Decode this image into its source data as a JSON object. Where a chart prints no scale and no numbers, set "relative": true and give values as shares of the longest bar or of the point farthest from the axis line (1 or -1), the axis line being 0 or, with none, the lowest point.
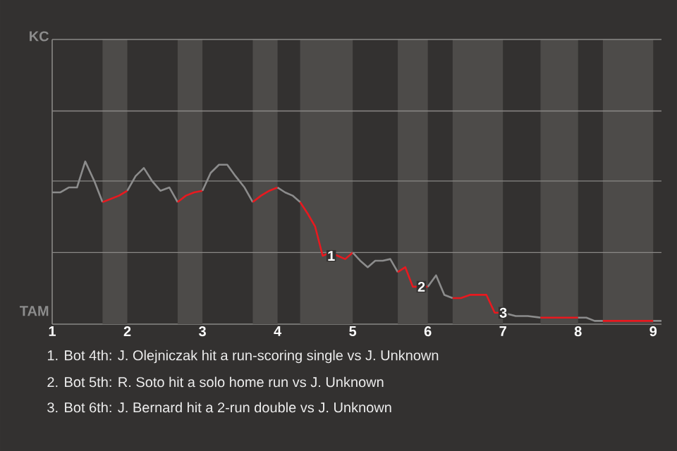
{
  "chart_data": {
    "type": "line",
    "relative": true,
    "series": [
      {
        "color": "#8c8c8c",
        "x": [
          1,
          1.11,
          1.22,
          1.33,
          1.44,
          1.56,
          1.67
        ],
        "values": [
          0.81,
          0.81,
          0.84,
          0.84,
          1,
          0.88,
          0.75
        ]
      },
      {
        "color": "#e8191f",
        "x": [
          1.67,
          1.78,
          1.89,
          2
        ],
        "values": [
          0.75,
          0.77,
          0.79,
          0.82
        ]
      },
      {
        "color": "#8c8c8c",
        "x": [
          2,
          2.11,
          2.22,
          2.33,
          2.44,
          2.56,
          2.67
        ],
        "values": [
          0.82,
          0.91,
          0.96,
          0.88,
          0.82,
          0.84,
          0.75
        ]
      },
      {
        "color": "#e8191f",
        "x": [
          2.67,
          2.78,
          2.89,
          3
        ],
        "values": [
          0.75,
          0.79,
          0.81,
          0.82
        ]
      },
      {
        "color": "#8c8c8c",
        "x": [
          3,
          3.11,
          3.22,
          3.33,
          3.44,
          3.56,
          3.67
        ],
        "values": [
          0.82,
          0.93,
          0.98,
          0.98,
          0.91,
          0.84,
          0.75
        ]
      },
      {
        "color": "#e8191f",
        "x": [
          3.67,
          3.78,
          3.89,
          4
        ],
        "values": [
          0.75,
          0.79,
          0.82,
          0.84
        ]
      },
      {
        "color": "#8c8c8c",
        "x": [
          4,
          4.1,
          4.2,
          4.3
        ],
        "values": [
          0.84,
          0.81,
          0.79,
          0.75
        ]
      },
      {
        "color": "#e8191f",
        "x": [
          4.3,
          4.4,
          4.5,
          4.6,
          4.7,
          4.8,
          4.9,
          5
        ],
        "values": [
          0.75,
          0.68,
          0.6,
          0.42,
          0.44,
          0.42,
          0.4,
          0.44
        ]
      },
      {
        "color": "#8c8c8c",
        "x": [
          5,
          5.1,
          5.2,
          5.3,
          5.4,
          5.5,
          5.6
        ],
        "values": [
          0.44,
          0.39,
          0.35,
          0.39,
          0.39,
          0.4,
          0.32
        ]
      },
      {
        "color": "#e8191f",
        "x": [
          5.6,
          5.7,
          5.8,
          5.9,
          6
        ],
        "values": [
          0.32,
          0.35,
          0.23,
          0.23,
          0.23
        ]
      },
      {
        "color": "#8c8c8c",
        "x": [
          6,
          6.11,
          6.22,
          6.33
        ],
        "values": [
          0.23,
          0.3,
          0.18,
          0.16
        ]
      },
      {
        "color": "#e8191f",
        "x": [
          6.33,
          6.44,
          6.56,
          6.67,
          6.78,
          6.89,
          7
        ],
        "values": [
          0.16,
          0.16,
          0.18,
          0.18,
          0.18,
          0.07,
          0.07
        ]
      },
      {
        "color": "#8c8c8c",
        "x": [
          7,
          7.17,
          7.33,
          7.5
        ],
        "values": [
          0.07,
          0.05,
          0.05,
          0.04
        ]
      },
      {
        "color": "#e8191f",
        "x": [
          7.5,
          7.67,
          7.83,
          8
        ],
        "values": [
          0.04,
          0.04,
          0.04,
          0.04
        ]
      },
      {
        "color": "#8c8c8c",
        "x": [
          8,
          8.11,
          8.22,
          8.33
        ],
        "values": [
          0.04,
          0.04,
          0.02,
          0.02
        ]
      },
      {
        "color": "#e8191f",
        "x": [
          8.33,
          8.44,
          8.56,
          8.67,
          8.78,
          8.89,
          9
        ],
        "values": [
          0.02,
          0.02,
          0.02,
          0.02,
          0.02,
          0.02,
          0.02
        ]
      },
      {
        "color": "#8c8c8c",
        "x": [
          9,
          9.11
        ],
        "values": [
          0.02,
          0.02
        ]
      }
    ],
    "xlim": [
      1,
      9.11
    ],
    "xticks": [
      1,
      2,
      3,
      4,
      5,
      6,
      7,
      8,
      9
    ],
    "ref_lines": [
      {
        "axis": "y",
        "value": 0.44,
        "color": "#8a8886"
      },
      {
        "axis": "y",
        "value": 0.88,
        "color": "#8a8886"
      },
      {
        "axis": "y",
        "value": 1.31,
        "color": "#8a8886"
      },
      {
        "axis": "y",
        "value": 1.75,
        "color": "#8a8886"
      }
    ],
    "bands": [
      {
        "axis": "x",
        "from": 1.67,
        "to": 2,
        "color": "#4d4b49"
      },
      {
        "axis": "x",
        "from": 2.67,
        "to": 3,
        "color": "#4d4b49"
      },
      {
        "axis": "x",
        "from": 3.67,
        "to": 4,
        "color": "#4d4b49"
      },
      {
        "axis": "x",
        "from": 4.3,
        "to": 5,
        "color": "#4d4b49"
      },
      {
        "axis": "x",
        "from": 5.6,
        "to": 6,
        "color": "#4d4b49"
      },
      {
        "axis": "x",
        "from": 6.33,
        "to": 7,
        "color": "#4d4b49"
      },
      {
        "axis": "x",
        "from": 7.5,
        "to": 8,
        "color": "#4d4b49"
      },
      {
        "axis": "x",
        "from": 8.33,
        "to": 9,
        "color": "#4d4b49"
      }
    ],
    "annotations": [
      "KC",
      "TAM",
      {
        "text": "1",
        "x": 4.6,
        "y": 0.42
      },
      {
        "text": "2",
        "x": 5.8,
        "y": 0.23
      },
      {
        "text": "3",
        "x": 6.89,
        "y": 0.07
      },
      "1. Bot 4th: J. Olejniczak hit a run-scoring single vs J. Unknown",
      "2. Bot 5th: R. Soto hit a solo home run vs J. Unknown",
      "3. Bot 6th: J. Bernard hit a 2-run double vs J. Unknown"
    ]
  }
}
